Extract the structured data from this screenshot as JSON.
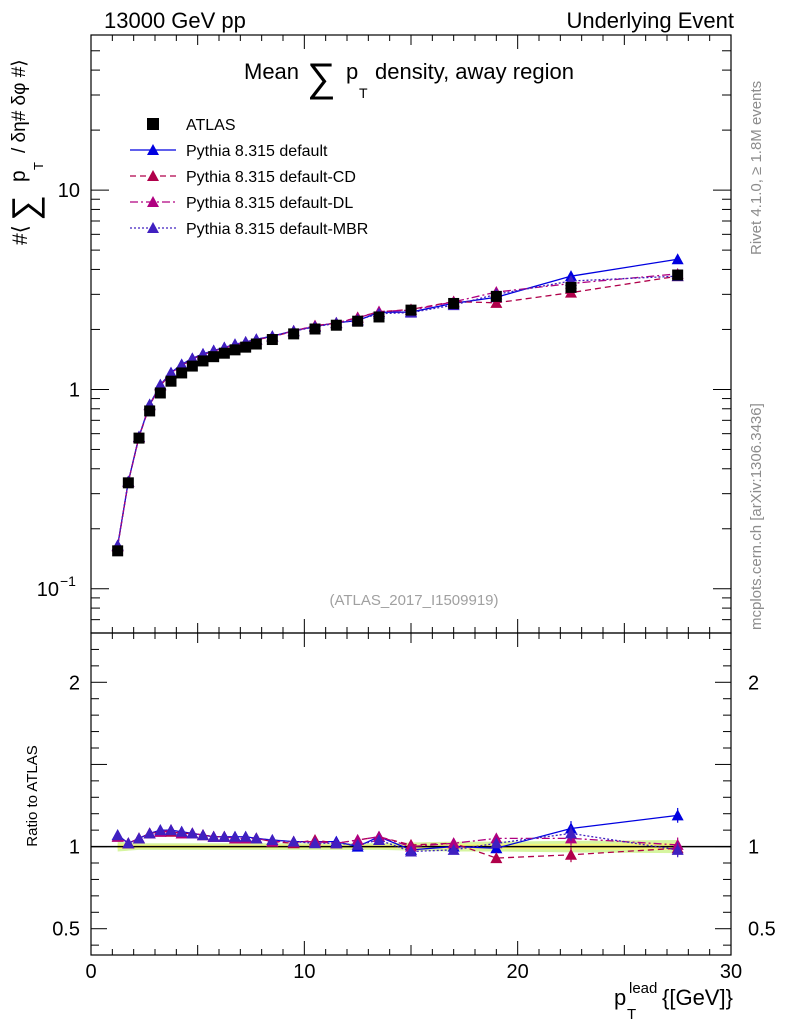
{
  "header": {
    "left": "13000 GeV pp",
    "right": "Underlying Event"
  },
  "side_labels": {
    "rivet": "Rivet 4.1.0, ≥ 1.8M events",
    "mcplots": "mcplots.cern.ch [arXiv:1306.3436]"
  },
  "colors": {
    "atlas": "#000000",
    "default": "#0000e0",
    "cd": "#b0004a",
    "dl": "#b00080",
    "mbr": "#4020c0",
    "band_inner": "#f5f57a",
    "band_outer": "#d6f5a0"
  },
  "chart_data": {
    "type": "scatter",
    "title": "Mean ∑ p_T density, away region",
    "title_parts": {
      "pre": "Mean",
      "sum": "∑",
      "p": "p",
      "sub": "T",
      "post": "density, away region"
    },
    "watermark": "(ATLAS_2017_I1509919)",
    "xlabel": "p_T^lead [[GeV]]",
    "xlabel_parts": {
      "p": "p",
      "sub": "T",
      "sup": "lead",
      "unit": "{[GeV]}"
    },
    "ylabel": "#⟨ ∑ p_T / δη# δφ #⟩",
    "ylabel_parts": {
      "pre": "#⟨",
      "sum": "∑",
      "p": "p",
      "sub": "T",
      "post": "/ δη# δφ #⟩"
    },
    "ratio_ylabel": "Ratio to ATLAS",
    "xlim": [
      0,
      30
    ],
    "ylim": [
      0.06,
      60
    ],
    "yscale": "log",
    "ratio_ylim": [
      0.34,
      2.3
    ],
    "xticks": [
      "0",
      "10",
      "20",
      "30"
    ],
    "xtick_values": [
      0,
      10,
      20,
      30
    ],
    "yticks": [
      {
        "value": 0.1,
        "base": "10",
        "exp": "−1"
      },
      {
        "value": 1,
        "base": "1",
        "exp": ""
      },
      {
        "value": 10,
        "base": "10",
        "exp": ""
      }
    ],
    "ratio_yticks": [
      {
        "value": 0.5,
        "label": "0.5"
      },
      {
        "value": 1,
        "label": "1"
      },
      {
        "value": 2,
        "label": "2"
      }
    ],
    "legend_position": "top-left",
    "x": [
      1.25,
      1.75,
      2.25,
      2.75,
      3.25,
      3.75,
      4.25,
      4.75,
      5.25,
      5.75,
      6.25,
      6.75,
      7.25,
      7.75,
      8.5,
      9.5,
      10.5,
      11.5,
      12.5,
      13.5,
      15.0,
      17.0,
      19.0,
      22.5,
      27.5
    ],
    "series": [
      {
        "name": "ATLAS",
        "key": "atlas",
        "values": [
          0.155,
          0.34,
          0.57,
          0.78,
          0.96,
          1.1,
          1.21,
          1.31,
          1.39,
          1.46,
          1.52,
          1.58,
          1.63,
          1.69,
          1.78,
          1.9,
          2.01,
          2.1,
          2.2,
          2.31,
          2.5,
          2.7,
          2.93,
          3.25,
          3.75
        ],
        "ratio": [
          1.0,
          1.0,
          1.0,
          1.0,
          1.0,
          1.0,
          1.0,
          1.0,
          1.0,
          1.0,
          1.0,
          1.0,
          1.0,
          1.0,
          1.0,
          1.0,
          1.0,
          1.0,
          1.0,
          1.0,
          1.0,
          1.0,
          1.0,
          1.0,
          1.0
        ],
        "ratio_band": [
          0.03,
          0.025,
          0.02,
          0.02,
          0.02,
          0.02,
          0.02,
          0.02,
          0.02,
          0.02,
          0.02,
          0.02,
          0.02,
          0.02,
          0.02,
          0.02,
          0.02,
          0.02,
          0.02,
          0.02,
          0.025,
          0.03,
          0.03,
          0.035,
          0.04
        ]
      },
      {
        "name": "Pythia 8.315 default",
        "key": "default",
        "values": [
          0.165,
          0.345,
          0.58,
          0.84,
          1.055,
          1.215,
          1.335,
          1.432,
          1.508,
          1.567,
          1.624,
          1.685,
          1.729,
          1.785,
          1.85,
          1.97,
          2.07,
          2.16,
          2.215,
          2.44,
          2.445,
          2.705,
          2.9,
          3.7,
          4.5
        ],
        "ratio": [
          1.07,
          1.02,
          1.05,
          1.08,
          1.1,
          1.1,
          1.09,
          1.08,
          1.07,
          1.06,
          1.06,
          1.06,
          1.06,
          1.05,
          1.04,
          1.03,
          1.03,
          1.03,
          1.0,
          1.06,
          0.98,
          1.0,
          0.99,
          1.11,
          1.19
        ]
      },
      {
        "name": "Pythia 8.315 default-CD",
        "key": "cd",
        "values": [
          0.163,
          0.344,
          0.575,
          0.832,
          1.045,
          1.2,
          1.318,
          1.42,
          1.495,
          1.555,
          1.61,
          1.668,
          1.722,
          1.775,
          1.84,
          1.96,
          2.09,
          2.15,
          2.3,
          2.45,
          2.52,
          2.76,
          2.72,
          3.06,
          3.7
        ],
        "ratio": [
          1.06,
          1.02,
          1.05,
          1.08,
          1.09,
          1.09,
          1.08,
          1.08,
          1.07,
          1.06,
          1.06,
          1.05,
          1.05,
          1.05,
          1.03,
          1.02,
          1.04,
          1.02,
          1.04,
          1.06,
          1.01,
          1.02,
          0.93,
          0.95,
          0.99
        ]
      },
      {
        "name": "Pythia 8.315 default-DL",
        "key": "dl",
        "values": [
          0.164,
          0.345,
          0.578,
          0.836,
          1.05,
          1.205,
          1.325,
          1.425,
          1.5,
          1.56,
          1.615,
          1.675,
          1.725,
          1.78,
          1.845,
          1.965,
          2.085,
          2.155,
          2.285,
          2.46,
          2.5,
          2.75,
          3.08,
          3.4,
          3.8
        ],
        "ratio": [
          1.06,
          1.02,
          1.05,
          1.08,
          1.09,
          1.1,
          1.08,
          1.08,
          1.07,
          1.06,
          1.06,
          1.05,
          1.05,
          1.05,
          1.03,
          1.03,
          1.03,
          1.02,
          1.04,
          1.06,
          1.0,
          1.02,
          1.05,
          1.05,
          1.01
        ]
      },
      {
        "name": "Pythia 8.315 default-MBR",
        "key": "mbr",
        "values": [
          0.165,
          0.346,
          0.58,
          0.84,
          1.055,
          1.21,
          1.33,
          1.43,
          1.505,
          1.565,
          1.62,
          1.68,
          1.73,
          1.785,
          1.85,
          1.96,
          2.06,
          2.15,
          2.23,
          2.4,
          2.43,
          2.65,
          3.0,
          3.5,
          3.7
        ],
        "ratio": [
          1.07,
          1.02,
          1.05,
          1.08,
          1.1,
          1.1,
          1.09,
          1.08,
          1.07,
          1.06,
          1.06,
          1.06,
          1.06,
          1.05,
          1.04,
          1.03,
          1.02,
          1.02,
          1.01,
          1.04,
          0.97,
          0.98,
          1.02,
          1.08,
          0.98
        ]
      }
    ]
  }
}
